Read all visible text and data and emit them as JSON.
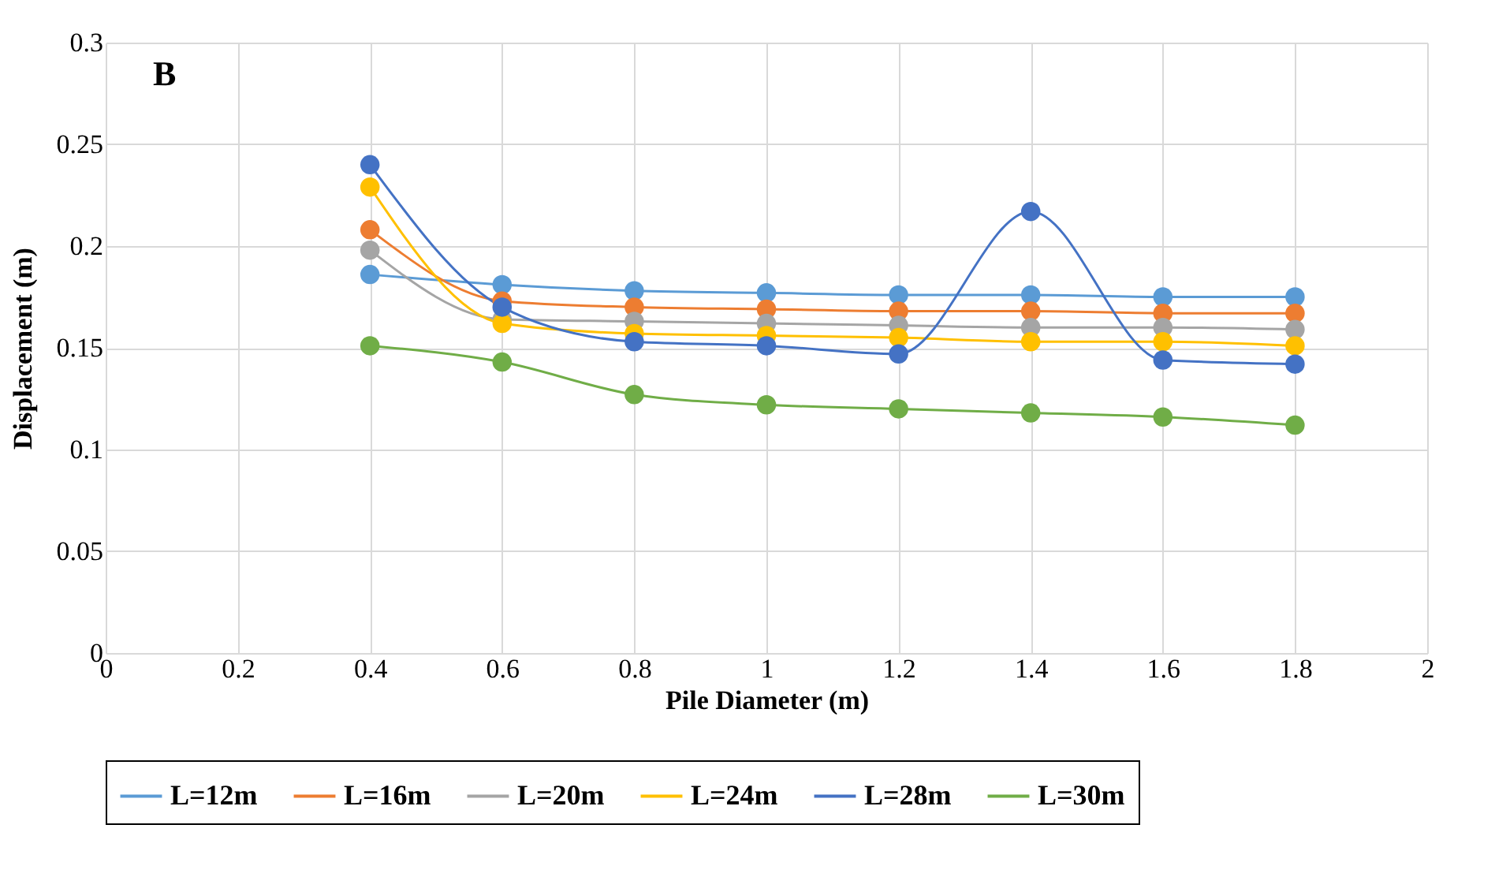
{
  "chart_data": {
    "type": "line",
    "annotations": [
      "B"
    ],
    "xlabel": "Pile Diameter (m)",
    "ylabel": "Displacement (m)",
    "x": [
      0.4,
      0.6,
      0.8,
      1,
      1.2,
      1.4,
      1.6,
      1.8
    ],
    "series": [
      {
        "name": "L=12m",
        "color": "#5b9bd5",
        "values": [
          0.186,
          0.181,
          0.178,
          0.177,
          0.176,
          0.176,
          0.175,
          0.175
        ]
      },
      {
        "name": "L=16m",
        "color": "#ed7d31",
        "values": [
          0.208,
          0.173,
          0.17,
          0.169,
          0.168,
          0.168,
          0.167,
          0.167
        ]
      },
      {
        "name": "L=20m",
        "color": "#a5a5a5",
        "values": [
          0.198,
          0.164,
          0.163,
          0.162,
          0.161,
          0.16,
          0.16,
          0.159
        ]
      },
      {
        "name": "L=24m",
        "color": "#ffc000",
        "values": [
          0.229,
          0.162,
          0.157,
          0.156,
          0.155,
          0.153,
          0.153,
          0.151
        ]
      },
      {
        "name": "L=28m",
        "color": "#4472c4",
        "values": [
          0.24,
          0.17,
          0.153,
          0.151,
          0.147,
          0.217,
          0.144,
          0.142
        ]
      },
      {
        "name": "L=30m",
        "color": "#70ad47",
        "values": [
          0.151,
          0.143,
          0.127,
          0.122,
          0.12,
          0.118,
          0.116,
          0.112
        ]
      }
    ],
    "xlim": [
      0,
      2
    ],
    "xticks": [
      0,
      0.2,
      0.4,
      0.6,
      0.8,
      1,
      1.2,
      1.4,
      1.6,
      1.8,
      2
    ],
    "ylim": [
      0,
      0.3
    ],
    "yticks": [
      0,
      0.05,
      0.1,
      0.15,
      0.2,
      0.25,
      0.3
    ],
    "grid": true,
    "legend": "bottom",
    "marker": "circle",
    "line_style": "solid"
  }
}
